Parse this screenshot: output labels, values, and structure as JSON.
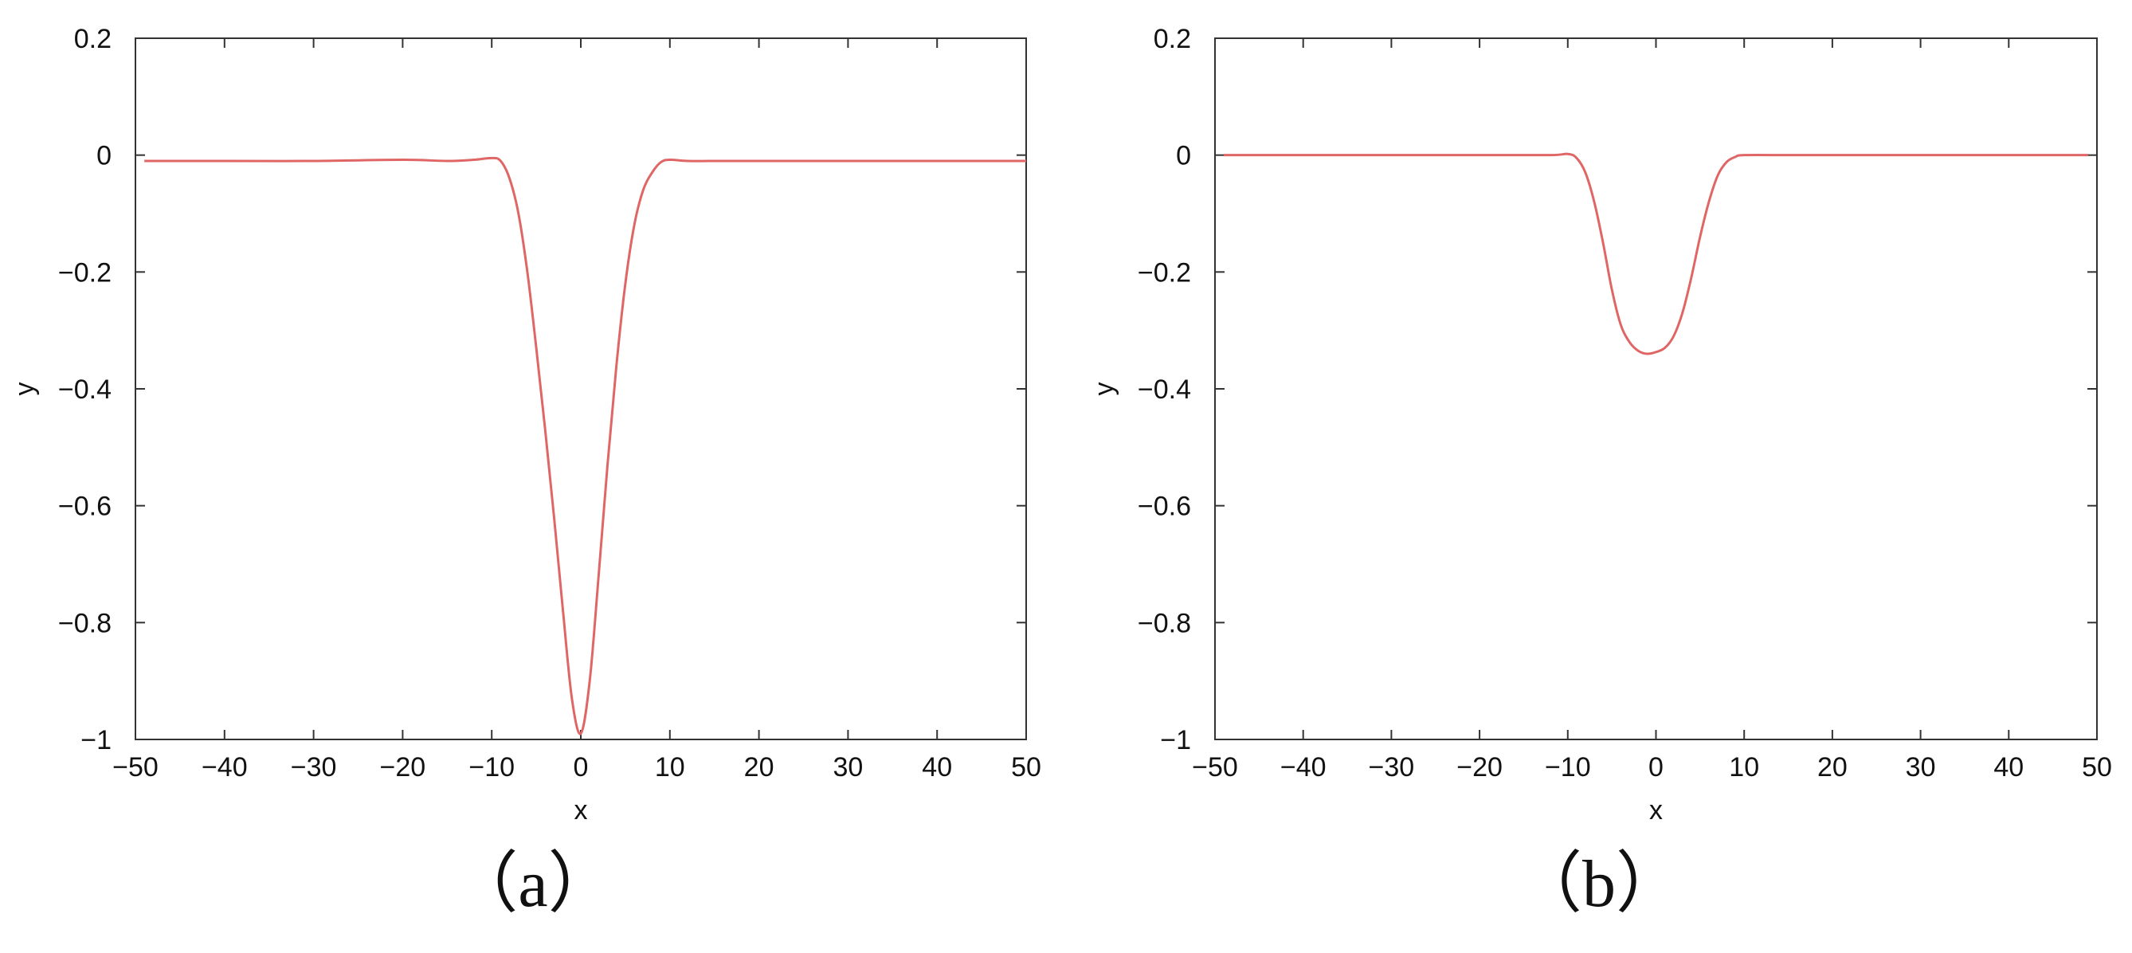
{
  "chart_data": [
    {
      "type": "line",
      "caption": "（a）",
      "xlabel": "x",
      "ylabel": "y",
      "xlim": [
        -50,
        50
      ],
      "ylim": [
        -1,
        0.2
      ],
      "xticks": [
        -50,
        -40,
        -30,
        -20,
        -10,
        0,
        10,
        20,
        30,
        40,
        50
      ],
      "yticks": [
        0.2,
        0,
        -0.2,
        -0.4,
        -0.6,
        -0.8,
        -1
      ],
      "xtick_labels": [
        "−50",
        "−40",
        "−30",
        "−20",
        "−10",
        "0",
        "10",
        "20",
        "30",
        "40",
        "50"
      ],
      "ytick_labels": [
        "0.2",
        "0",
        "−0.2",
        "−0.4",
        "−0.6",
        "−0.8",
        "−1"
      ],
      "grid": false,
      "line_color": "#e06666",
      "series": [
        {
          "x": [
            -49,
            -40,
            -30,
            -20,
            -15,
            -12,
            -10,
            -9,
            -8,
            -7,
            -6,
            -5,
            -4,
            -3,
            -2,
            -1,
            0,
            1,
            2,
            3,
            4,
            5,
            6,
            7,
            8,
            9,
            10,
            12,
            15,
            20,
            30,
            40,
            50
          ],
          "y": [
            -0.01,
            -0.01,
            -0.01,
            -0.008,
            -0.01,
            -0.008,
            -0.005,
            -0.01,
            -0.04,
            -0.1,
            -0.2,
            -0.33,
            -0.47,
            -0.62,
            -0.78,
            -0.93,
            -0.99,
            -0.9,
            -0.72,
            -0.53,
            -0.36,
            -0.22,
            -0.12,
            -0.06,
            -0.03,
            -0.012,
            -0.008,
            -0.01,
            -0.01,
            -0.01,
            -0.01,
            -0.01,
            -0.01
          ]
        }
      ]
    },
    {
      "type": "line",
      "caption": "（b）",
      "xlabel": "x",
      "ylabel": "y",
      "xlim": [
        -50,
        50
      ],
      "ylim": [
        -1,
        0.2
      ],
      "xticks": [
        -50,
        -40,
        -30,
        -20,
        -10,
        0,
        10,
        20,
        30,
        40,
        50
      ],
      "yticks": [
        0.2,
        0,
        -0.2,
        -0.4,
        -0.6,
        -0.8,
        -1
      ],
      "xtick_labels": [
        "−50",
        "−40",
        "−30",
        "−20",
        "−10",
        "0",
        "10",
        "20",
        "30",
        "40",
        "50"
      ],
      "ytick_labels": [
        "0.2",
        "0",
        "−0.2",
        "−0.4",
        "−0.6",
        "−0.8",
        "−1"
      ],
      "grid": false,
      "line_color": "#e06666",
      "series": [
        {
          "x": [
            -49,
            -40,
            -30,
            -20,
            -12,
            -10,
            -9,
            -8,
            -7,
            -6,
            -5,
            -4,
            -3,
            -2,
            -1,
            0,
            1,
            2,
            3,
            4,
            5,
            6,
            7,
            8,
            9,
            10,
            15,
            20,
            30,
            40,
            49
          ],
          "y": [
            0,
            0,
            0,
            0,
            0,
            0.002,
            -0.005,
            -0.03,
            -0.08,
            -0.15,
            -0.23,
            -0.29,
            -0.32,
            -0.335,
            -0.34,
            -0.337,
            -0.33,
            -0.31,
            -0.27,
            -0.21,
            -0.14,
            -0.08,
            -0.035,
            -0.012,
            -0.003,
            0,
            0,
            0,
            0,
            0,
            0
          ]
        }
      ]
    }
  ]
}
